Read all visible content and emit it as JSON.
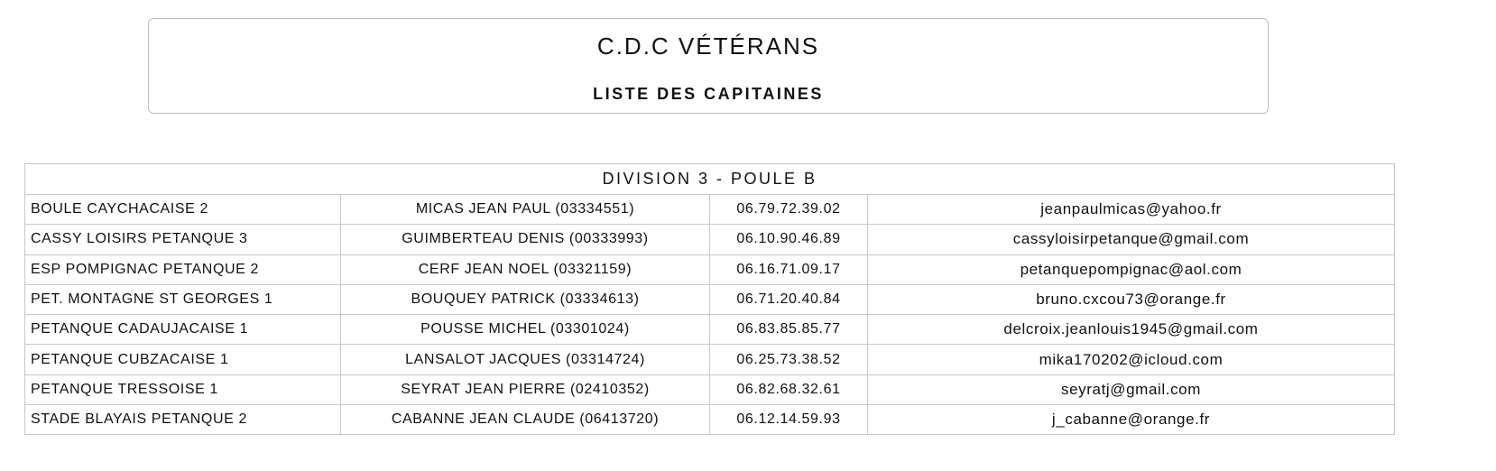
{
  "header": {
    "title": "C.D.C VÉTÉRANS",
    "subtitle": "LISTE DES CAPITAINES"
  },
  "table": {
    "caption": "DIVISION 3 - POULE B",
    "rows": [
      {
        "club": "BOULE CAYCHACAISE 2",
        "captain": "MICAS JEAN PAUL (03334551)",
        "phone": "06.79.72.39.02",
        "email": "jeanpaulmicas@yahoo.fr"
      },
      {
        "club": "CASSY LOISIRS PETANQUE 3",
        "captain": "GUIMBERTEAU DENIS (00333993)",
        "phone": "06.10.90.46.89",
        "email": "cassyloisirpetanque@gmail.com"
      },
      {
        "club": "ESP POMPIGNAC PETANQUE 2",
        "captain": "CERF JEAN NOEL (03321159)",
        "phone": "06.16.71.09.17",
        "email": "petanquepompignac@aol.com"
      },
      {
        "club": "PET. MONTAGNE ST GEORGES 1",
        "captain": "BOUQUEY PATRICK (03334613)",
        "phone": "06.71.20.40.84",
        "email": "bruno.cxcou73@orange.fr"
      },
      {
        "club": "PETANQUE CADAUJACAISE 1",
        "captain": "POUSSE MICHEL (03301024)",
        "phone": "06.83.85.85.77",
        "email": "delcroix.jeanlouis1945@gmail.com"
      },
      {
        "club": "PETANQUE CUBZACAISE 1",
        "captain": "LANSALOT JACQUES (03314724)",
        "phone": "06.25.73.38.52",
        "email": "mika170202@icloud.com"
      },
      {
        "club": "PETANQUE TRESSOISE 1",
        "captain": "SEYRAT JEAN PIERRE (02410352)",
        "phone": "06.82.68.32.61",
        "email": "seyratj@gmail.com"
      },
      {
        "club": "STADE BLAYAIS PETANQUE 2",
        "captain": "CABANNE JEAN CLAUDE (06413720)",
        "phone": "06.12.14.59.93",
        "email": "j_cabanne@orange.fr"
      }
    ]
  }
}
